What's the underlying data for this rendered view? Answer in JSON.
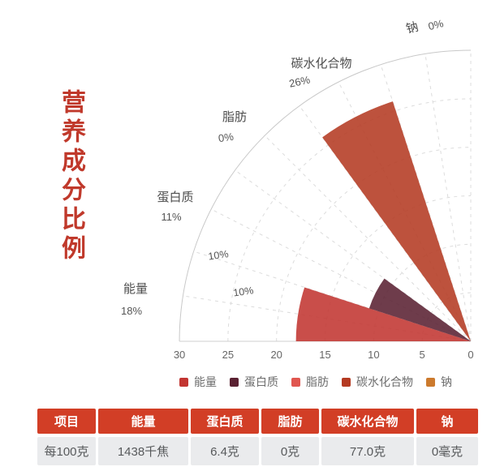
{
  "page": {
    "title": "营养成分比例",
    "title_color": "#c0392b"
  },
  "chart_data": {
    "type": "bar",
    "variant": "polar-rose-quarter",
    "categories": [
      "能量",
      "蛋白质",
      "脂肪",
      "碳水化合物",
      "钠"
    ],
    "values": [
      18,
      11,
      0,
      26,
      0
    ],
    "value_labels": [
      "18%",
      "11%",
      "0%",
      "26%",
      "0%"
    ],
    "colors": [
      "#c23531",
      "#5a2132",
      "#e0564f",
      "#b43a22",
      "#cc7a2d"
    ],
    "wedge_opacity": 0.88,
    "radial_axis": {
      "min": 0,
      "max": 30,
      "ticks": [
        30,
        25,
        20,
        15,
        10,
        5,
        0
      ]
    },
    "angular_span_deg": 90,
    "slot_deg": 18,
    "grid": "on",
    "grid_inner_labels": [
      {
        "text": "10%",
        "deg": 19,
        "r": 27.5
      },
      {
        "text": "10%",
        "deg": 12.5,
        "r": 24
      }
    ],
    "legend_position": "bottom"
  },
  "table": {
    "header_bg": "#d23e26",
    "row_bg": "#eaebed",
    "headers": [
      "项目",
      "能量",
      "蛋白质",
      "脂肪",
      "碳水化合物",
      "钠"
    ],
    "rows": [
      [
        "每100克",
        "1438千焦",
        "6.4克",
        "0克",
        "77.0克",
        "0毫克"
      ]
    ]
  }
}
